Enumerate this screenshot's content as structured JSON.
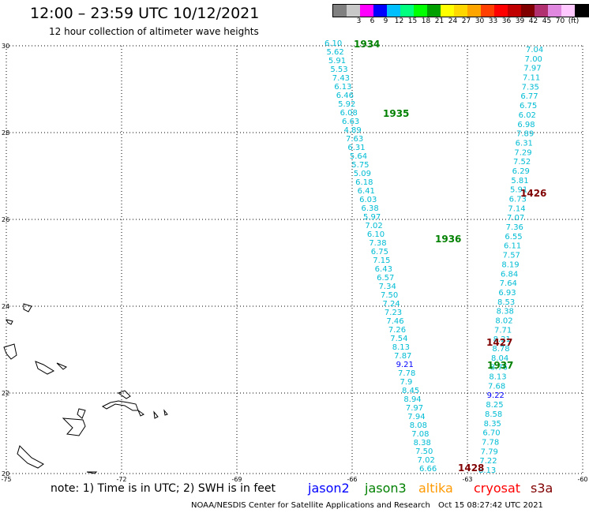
{
  "title": "12:00 – 23:59 UTC 10/12/2021",
  "subtitle": "12 hour collection of altimeter wave heights",
  "colorbar": {
    "colors": [
      "#808080",
      "#c8c8c8",
      "#ff00ff",
      "#0000ff",
      "#00bfff",
      "#00ff7f",
      "#00ff00",
      "#00a000",
      "#ffff00",
      "#ffd700",
      "#ffa500",
      "#ff4000",
      "#ff0000",
      "#c00000",
      "#800000",
      "#b03070",
      "#e088e0",
      "#ffc8ff",
      "#000000"
    ],
    "labels": [
      "",
      "3",
      "6",
      "9",
      "12",
      "15",
      "18",
      "21",
      "24",
      "27",
      "30",
      "33",
      "36",
      "39",
      "42",
      "45",
      "70",
      "(ft)"
    ]
  },
  "axes": {
    "x_ticks": [
      "-75",
      "-72",
      "-69",
      "-66",
      "-63",
      "-60"
    ],
    "y_ticks": [
      "30",
      "28",
      "26",
      "24",
      "22",
      "20"
    ]
  },
  "tracks": [
    {
      "id": "1934",
      "label": "1934",
      "label_color": "#008000",
      "value_color": "#00bcd4"
    },
    {
      "id": "1426",
      "label": "1426",
      "label_color": "#800000",
      "value_color": "#00bcd4"
    }
  ],
  "pass_labels": [
    {
      "text": "1934",
      "color": "#008000"
    },
    {
      "text": "1935",
      "color": "#008000"
    },
    {
      "text": "1936",
      "color": "#008000"
    },
    {
      "text": "1937",
      "color": "#008000"
    },
    {
      "text": "1426",
      "color": "#800000"
    },
    {
      "text": "1427",
      "color": "#800000"
    },
    {
      "text": "1428",
      "color": "#800000"
    }
  ],
  "track_a_values": [
    "6.10",
    "5.62",
    "5.91",
    "5.53",
    "7.43",
    "6.13",
    "6.46",
    "5.92",
    "6.08",
    "6.63",
    "4.89",
    "7.63",
    "6.31",
    "5.64",
    "5.75",
    "5.09",
    "6.18",
    "6.41",
    "6.03",
    "6.38",
    "5.97",
    "7.02",
    "6.10",
    "7.38",
    "6.75",
    "7.15",
    "6.43",
    "6.57",
    "7.34",
    "7.50",
    "7.24",
    "7.23",
    "7.46",
    "7.26",
    "7.54",
    "8.13",
    "7.87",
    "9.21",
    "7.78",
    "7.9",
    "8.45",
    "8.94",
    "7.97",
    "7.94",
    "8.08",
    "7.08",
    "8.38",
    "7.50",
    "7.02",
    "6.66"
  ],
  "track_b_values": [
    "7.04",
    "7.00",
    "7.97",
    "7.11",
    "7.35",
    "6.77",
    "6.75",
    "6.02",
    "6.98",
    "7.89",
    "6.31",
    "7.29",
    "7.52",
    "6.29",
    "5.81",
    "5.91",
    "6.73",
    "7.14",
    "7.07",
    "7.36",
    "6.55",
    "6.11",
    "7.57",
    "8.19",
    "6.84",
    "7.64",
    "6.93",
    "8.53",
    "8.38",
    "8.02",
    "7.71",
    "8.21",
    "8.78",
    "8.04",
    "8.76",
    "8.13",
    "7.68",
    "9.22",
    "8.25",
    "8.58",
    "8.35",
    "6.70",
    "7.78",
    "7.79",
    "7.22",
    "8.13"
  ],
  "legend": {
    "note": "note:  1) Time is in UTC;  2) SWH is in feet",
    "satellites": [
      {
        "name": "jason2",
        "color": "#0000ff"
      },
      {
        "name": "jason3",
        "color": "#008000"
      },
      {
        "name": "altika",
        "color": "#ff9900"
      },
      {
        "name": "cryosat",
        "color": "#ff0000"
      },
      {
        "name": "s3a",
        "color": "#800000"
      }
    ]
  },
  "footer": {
    "left": "NOAA/NESDIS Center for Satellite Applications and Research",
    "right": "Oct 15 08:27:42 UTC 2021"
  }
}
